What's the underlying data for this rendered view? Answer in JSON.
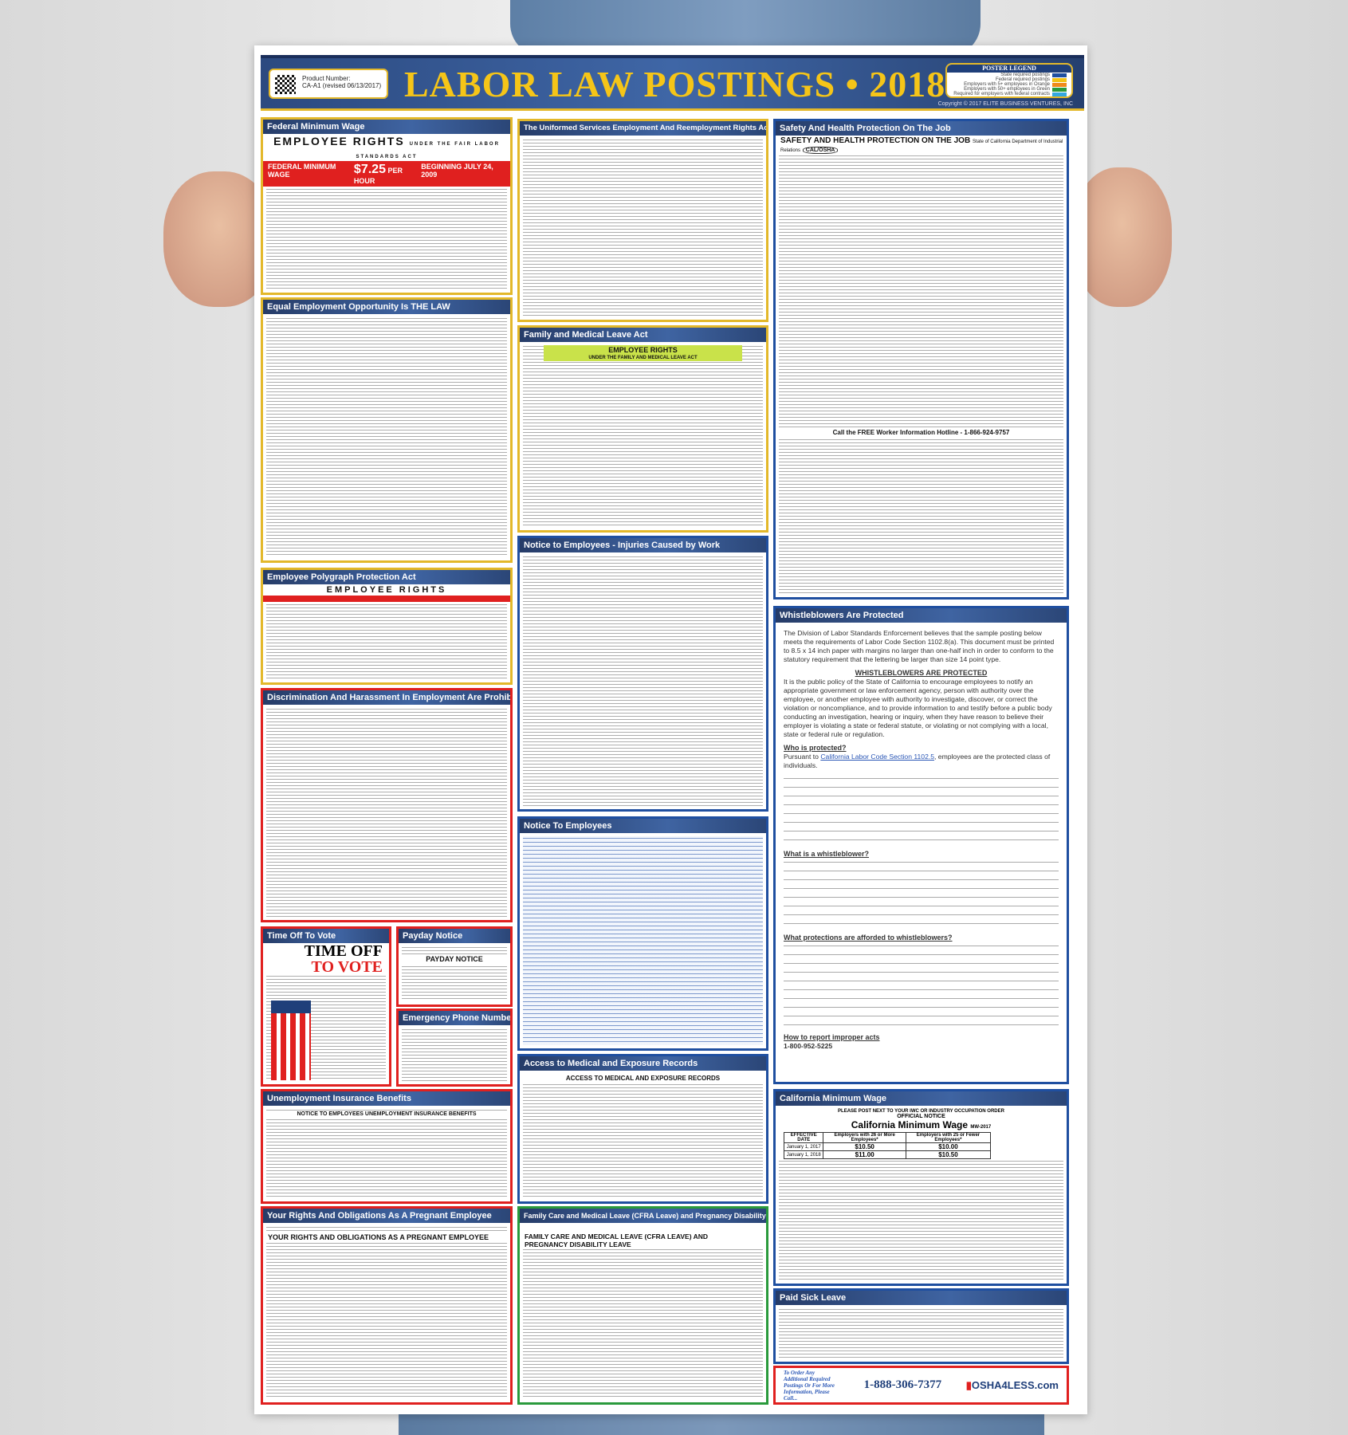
{
  "header": {
    "product_label": "Product Number:",
    "product_number": "CA-A1 (revised 06/13/2017)",
    "title": "LABOR LAW POSTINGS • 2018",
    "copyright": "Copyright © 2017 ELITE BUSINESS VENTURES, INC"
  },
  "legend": {
    "title": "POSTER LEGEND",
    "items": [
      {
        "label": "State required postings",
        "color": "#1f4fa0"
      },
      {
        "label": "Federal required postings",
        "color": "#f2c316"
      },
      {
        "label": "Employers with 5+ employees in Orange",
        "color": "#f08a1c"
      },
      {
        "label": "Employers with 50+ employees in Green",
        "color": "#2a9a3c"
      },
      {
        "label": "Required for employers with federal contracts",
        "color": "#35a8e0"
      }
    ]
  },
  "colors": {
    "border": "#e0201f",
    "title_bar": "#2b4677",
    "header_text": "#f5c518"
  },
  "panels": {
    "fmw": {
      "title": "Federal Minimum Wage",
      "heading": "EMPLOYEE RIGHTS",
      "subheading": "UNDER THE FAIR LABOR STANDARDS ACT",
      "bar_left": "FEDERAL MINIMUM WAGE",
      "rate": "$7.25",
      "bar_unit": "PER HOUR",
      "bar_right": "BEGINNING JULY 24, 2009"
    },
    "eeo": {
      "title": "Equal Employment Opportunity Is THE LAW"
    },
    "poly": {
      "title": "Employee Polygraph Protection Act",
      "heading": "EMPLOYEE RIGHTS"
    },
    "disc": {
      "title": "Discrimination And Harassment In Employment Are Prohibited By Law"
    },
    "vote": {
      "title": "Time Off To Vote",
      "line1": "TIME OFF",
      "line2": "TO VOTE"
    },
    "payday": {
      "title": "Payday Notice",
      "heading": "PAYDAY NOTICE"
    },
    "emerg": {
      "title": "Emergency Phone Numbers"
    },
    "ui": {
      "title": "Unemployment Insurance Benefits",
      "heading": "NOTICE TO EMPLOYEES UNEMPLOYMENT INSURANCE BENEFITS"
    },
    "preg": {
      "title": "Your Rights And Obligations As A Pregnant Employee",
      "heading": "YOUR RIGHTS AND OBLIGATIONS AS A PREGNANT EMPLOYEE"
    },
    "userra": {
      "title": "The Uniformed Services Employment And Reemployment Rights Act"
    },
    "fmla": {
      "title": "Family and Medical Leave Act",
      "heading": "EMPLOYEE RIGHTS",
      "subheading": "UNDER THE FAMILY AND MEDICAL LEAVE ACT"
    },
    "inj": {
      "title": "Notice to Employees - Injuries Caused by Work"
    },
    "nte": {
      "title": "Notice To Employees"
    },
    "access": {
      "title": "Access to Medical and Exposure Records",
      "heading": "ACCESS TO MEDICAL AND EXPOSURE RECORDS"
    },
    "cfra": {
      "title": "Family Care and Medical Leave (CFRA Leave) and Pregnancy Disability Leave",
      "heading": "FAMILY CARE AND MEDICAL LEAVE (CFRA LEAVE) AND PREGNANCY DISABILITY LEAVE"
    },
    "safety": {
      "title": "Safety And Health Protection On The Job",
      "heading": "SAFETY AND HEALTH PROTECTION ON THE JOB",
      "agency": "State of California Department of Industrial Relations",
      "hotline": "Call the FREE Worker Information Hotline - 1-866-924-9757"
    },
    "whistle": {
      "title": "Whistleblowers Are Protected",
      "intro": "The Division of Labor Standards Enforcement believes that the sample posting below meets the requirements of Labor Code Section 1102.8(a). This document must be printed to 8.5 x 14 inch paper with margins no larger than one-half inch in order to conform to the statutory requirement that the lettering be larger than size 14 point type.",
      "heading": "WHISTLEBLOWERS ARE PROTECTED",
      "policy": "It is the public policy of the State of California to encourage employees to notify an appropriate government or law enforcement agency, person with authority over the employee, or another employee with authority to investigate, discover, or correct the violation or noncompliance, and to provide information to and testify before a public body conducting an investigation, hearing or inquiry, when they have reason to believe their employer is violating a state or federal statute, or violating or not complying with a local, state or federal rule or regulation.",
      "who_heading": "Who is protected?",
      "who_pre": "Pursuant to ",
      "who_link": "California Labor Code Section 1102.5",
      "who_post": ", employees are the protected class of individuals.",
      "what_heading": "What is a whistleblower?",
      "afforded_heading": "What protections are afforded to whistleblowers?",
      "report_heading": "How to report improper acts",
      "hotline": "1-800-952-5225"
    },
    "camw": {
      "title": "California Minimum Wage",
      "notice": "PLEASE POST NEXT TO YOUR IWC OR INDUSTRY OCCUPATION ORDER",
      "official": "OFFICIAL NOTICE",
      "heading": "California Minimum Wage",
      "code": "MW-2017",
      "table": {
        "headers": [
          "EFFECTIVE DATE",
          "Employers with 26 or More Employees*",
          "Employers with 25 or Fewer Employees*"
        ],
        "rows": [
          [
            "January 1, 2017",
            "$10.50",
            "$10.00"
          ],
          [
            "January 1, 2018",
            "$11.00",
            "$10.50"
          ]
        ]
      }
    },
    "psl": {
      "title": "Paid Sick Leave"
    }
  },
  "footer": {
    "order_text": "To Order Any Additional Required Postings Or For More Information, Please Call...",
    "phone": "1-888-306-7377",
    "logo": "OSHA4LESS.com"
  }
}
